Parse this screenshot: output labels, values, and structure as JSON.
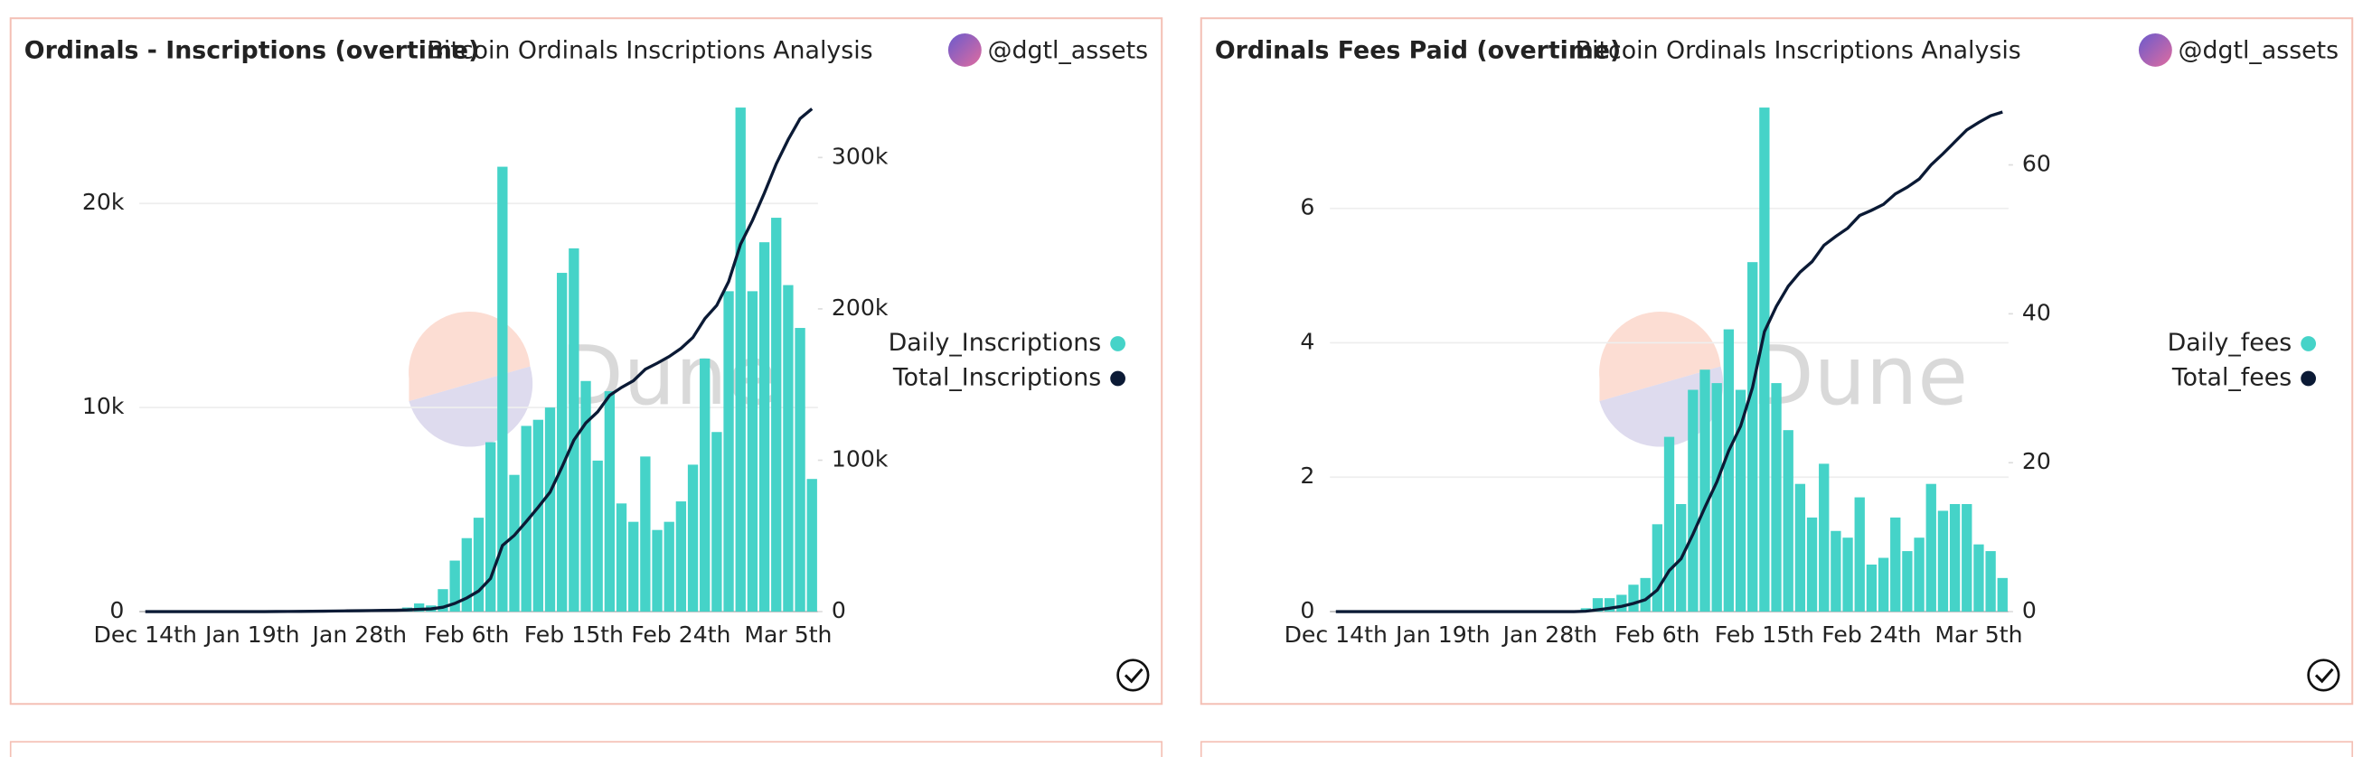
{
  "chart_data": [
    {
      "type": "combo",
      "title": "Ordinals - Inscriptions (overtime)",
      "subtitle": "Bitcoin Ordinals Inscriptions Analysis",
      "author": "@dgtl_assets",
      "watermark": "Dune",
      "categories": [
        "Dec 14th",
        null,
        null,
        null,
        null,
        null,
        null,
        null,
        null,
        "Jan 19th",
        null,
        null,
        null,
        null,
        null,
        null,
        null,
        null,
        "Jan 28th",
        null,
        null,
        null,
        null,
        null,
        null,
        null,
        null,
        "Feb 6th",
        null,
        null,
        null,
        null,
        null,
        null,
        null,
        null,
        "Feb 15th",
        null,
        null,
        null,
        null,
        null,
        null,
        null,
        null,
        "Feb 24th",
        null,
        null,
        null,
        null,
        null,
        null,
        null,
        null,
        "Mar 5th",
        null,
        null
      ],
      "series": [
        {
          "name": "Daily_Inscriptions",
          "type": "bar",
          "color": "#45d3c8",
          "values": [
            0,
            0,
            0,
            0,
            0,
            0,
            0,
            0,
            0,
            0,
            0,
            0,
            0,
            0,
            0,
            0,
            0,
            0,
            0,
            0,
            0,
            100,
            200,
            400,
            300,
            1100,
            2500,
            3600,
            4600,
            8300,
            21800,
            6700,
            9100,
            9400,
            10000,
            16600,
            17800,
            11300,
            7400,
            10800,
            5300,
            4400,
            7600,
            4000,
            4400,
            5400,
            7200,
            12400,
            8800,
            15700,
            24700,
            15700,
            18100,
            19300,
            16000,
            13900,
            6500
          ]
        },
        {
          "name": "Total_Inscriptions",
          "type": "line",
          "axis": "y2",
          "color": "#0b1a35",
          "values": [
            0,
            0,
            0,
            0,
            0,
            0,
            0,
            0,
            0,
            0,
            0,
            50,
            100,
            150,
            200,
            300,
            400,
            500,
            600,
            700,
            800,
            900,
            1100,
            1500,
            1800,
            2900,
            5400,
            9000,
            13600,
            21900,
            43700,
            50400,
            59500,
            68900,
            78900,
            95500,
            113300,
            124600,
            132000,
            142800,
            148100,
            152500,
            160100,
            164100,
            168500,
            173900,
            181100,
            193500,
            202300,
            218000,
            242700,
            258400,
            276500,
            295800,
            311800,
            325700,
            332200
          ]
        }
      ],
      "ylim": [
        0,
        24700
      ],
      "yticks": [
        0,
        {
          "value": 10000,
          "label": "10k"
        },
        {
          "value": 20000,
          "label": "20k"
        }
      ],
      "y2lim": [
        0,
        333000
      ],
      "y2ticks": [
        0,
        {
          "value": 100000,
          "label": "100k"
        },
        {
          "value": 200000,
          "label": "200k"
        },
        {
          "value": 300000,
          "label": "300k"
        }
      ],
      "grid": true,
      "legend": "right"
    },
    {
      "type": "combo",
      "title": "Ordinals Fees Paid (overtime)",
      "subtitle": "Bitcoin Ordinals Inscriptions Analysis",
      "author": "@dgtl_assets",
      "watermark": "Dune",
      "categories": [
        "Dec 14th",
        null,
        null,
        null,
        null,
        null,
        null,
        null,
        null,
        "Jan 19th",
        null,
        null,
        null,
        null,
        null,
        null,
        null,
        null,
        "Jan 28th",
        null,
        null,
        null,
        null,
        null,
        null,
        null,
        null,
        "Feb 6th",
        null,
        null,
        null,
        null,
        null,
        null,
        null,
        null,
        "Feb 15th",
        null,
        null,
        null,
        null,
        null,
        null,
        null,
        null,
        "Feb 24th",
        null,
        null,
        null,
        null,
        null,
        null,
        null,
        null,
        "Mar 5th",
        null,
        null
      ],
      "series": [
        {
          "name": "Daily_fees",
          "type": "bar",
          "color": "#45d3c8",
          "values": [
            0,
            0,
            0,
            0,
            0,
            0,
            0,
            0,
            0,
            0,
            0,
            0,
            0,
            0,
            0,
            0,
            0,
            0,
            0,
            0,
            0,
            0.05,
            0.2,
            0.2,
            0.25,
            0.4,
            0.5,
            1.3,
            2.6,
            1.6,
            3.3,
            3.6,
            3.4,
            4.2,
            3.3,
            5.2,
            7.5,
            3.4,
            2.7,
            1.9,
            1.4,
            2.2,
            1.2,
            1.1,
            1.7,
            0.7,
            0.8,
            1.4,
            0.9,
            1.1,
            1.9,
            1.5,
            1.6,
            1.6,
            1.0,
            0.9,
            0.5
          ]
        },
        {
          "name": "Total_fees",
          "type": "line",
          "axis": "y2",
          "color": "#0b1a35",
          "values": [
            0,
            0,
            0,
            0,
            0,
            0,
            0,
            0,
            0,
            0,
            0,
            0,
            0,
            0,
            0,
            0,
            0,
            0,
            0,
            0,
            0,
            0.05,
            0.25,
            0.45,
            0.7,
            1.1,
            1.6,
            2.9,
            5.5,
            7.1,
            10.4,
            14,
            17.4,
            21.6,
            24.9,
            30.1,
            37.6,
            41,
            43.7,
            45.6,
            47,
            49.2,
            50.4,
            51.5,
            53.2,
            53.9,
            54.7,
            56.1,
            57,
            58.1,
            60,
            61.5,
            63.1,
            64.7,
            65.7,
            66.6,
            67.1
          ]
        }
      ],
      "ylim": [
        0,
        7.5
      ],
      "yticks": [
        0,
        2,
        4,
        6
      ],
      "y2lim": [
        0,
        67.7
      ],
      "y2ticks": [
        0,
        20,
        40,
        60
      ],
      "grid": true,
      "legend": "right"
    }
  ]
}
